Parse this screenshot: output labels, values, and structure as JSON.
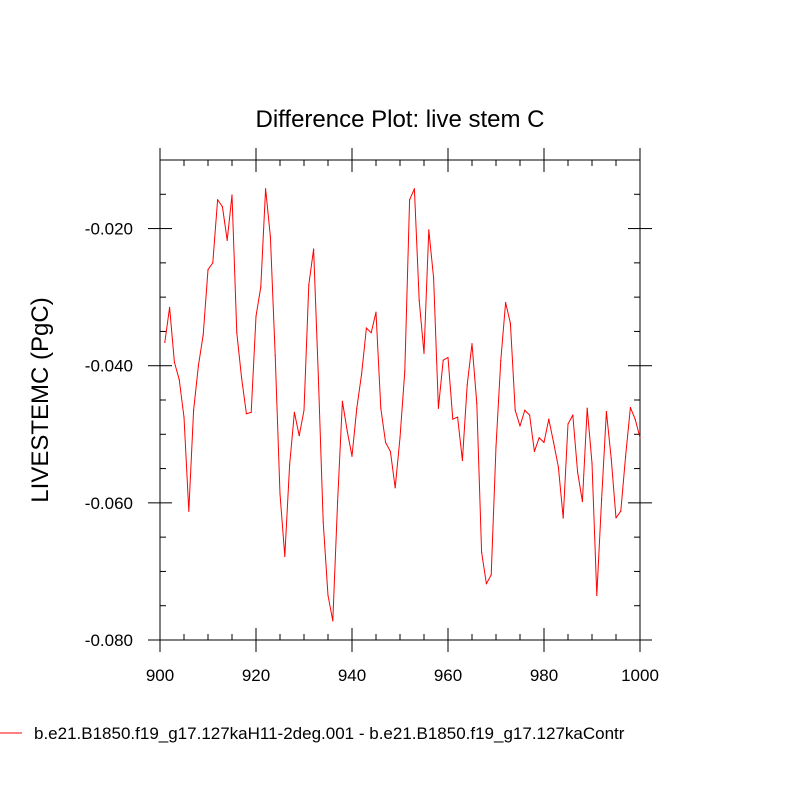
{
  "chart_data": {
    "type": "line",
    "title": "Difference Plot: live stem C",
    "xlabel": "",
    "ylabel": "LIVESTEMC  (PgC)",
    "xlim": [
      900,
      1000
    ],
    "ylim": [
      -0.08,
      -0.01
    ],
    "x_ticks": [
      900,
      920,
      940,
      960,
      980,
      1000
    ],
    "x_tick_labels": [
      "900",
      "920",
      "940",
      "960",
      "980",
      "1000"
    ],
    "y_ticks": [
      -0.08,
      -0.06,
      -0.04,
      -0.02
    ],
    "y_tick_labels": [
      "-0.080",
      "-0.060",
      "-0.040",
      "-0.020"
    ],
    "grid": false,
    "legend_position": "bottom",
    "series": [
      {
        "name": "b.e21.B1850.f19_g17.127kaH11-2deg.001 - b.e21.B1850.f19_g17.127kaContr",
        "color": "#ff0000",
        "x": [
          901,
          902,
          903,
          904,
          905,
          906,
          907,
          908,
          909,
          910,
          911,
          912,
          913,
          914,
          915,
          916,
          917,
          918,
          919,
          920,
          921,
          922,
          923,
          924,
          925,
          926,
          927,
          928,
          929,
          930,
          931,
          932,
          933,
          934,
          935,
          936,
          937,
          938,
          939,
          940,
          941,
          942,
          943,
          944,
          945,
          946,
          947,
          948,
          949,
          950,
          951,
          952,
          953,
          954,
          955,
          956,
          957,
          958,
          959,
          960,
          961,
          962,
          963,
          964,
          965,
          966,
          967,
          968,
          969,
          970,
          971,
          972,
          973,
          974,
          975,
          976,
          977,
          978,
          979,
          980,
          981,
          982,
          983,
          984,
          985,
          986,
          987,
          988,
          989,
          990,
          991,
          992,
          993,
          994,
          995,
          996,
          997,
          998,
          999,
          1000
        ],
        "values": [
          -0.0366,
          -0.0315,
          -0.0395,
          -0.042,
          -0.0475,
          -0.0612,
          -0.0465,
          -0.04,
          -0.0355,
          -0.026,
          -0.025,
          -0.0158,
          -0.0168,
          -0.0217,
          -0.0151,
          -0.0352,
          -0.0418,
          -0.047,
          -0.0468,
          -0.0328,
          -0.0285,
          -0.0142,
          -0.0212,
          -0.0385,
          -0.0587,
          -0.0678,
          -0.0545,
          -0.0468,
          -0.0502,
          -0.0465,
          -0.0282,
          -0.023,
          -0.0418,
          -0.0628,
          -0.0735,
          -0.0772,
          -0.0598,
          -0.0452,
          -0.0495,
          -0.0532,
          -0.0462,
          -0.0412,
          -0.0345,
          -0.0352,
          -0.0322,
          -0.0462,
          -0.0512,
          -0.0525,
          -0.0578,
          -0.0505,
          -0.0408,
          -0.0158,
          -0.0142,
          -0.0305,
          -0.0382,
          -0.0202,
          -0.0272,
          -0.0462,
          -0.0392,
          -0.0388,
          -0.0478,
          -0.0475,
          -0.0538,
          -0.0428,
          -0.0368,
          -0.0455,
          -0.0672,
          -0.0718,
          -0.0705,
          -0.0518,
          -0.0392,
          -0.0308,
          -0.0338,
          -0.0465,
          -0.0488,
          -0.0465,
          -0.0472,
          -0.0525,
          -0.0505,
          -0.0512,
          -0.0478,
          -0.0512,
          -0.0548,
          -0.0622,
          -0.0485,
          -0.0472,
          -0.0555,
          -0.0598,
          -0.0462,
          -0.0542,
          -0.0735,
          -0.0595,
          -0.0467,
          -0.0535,
          -0.0622,
          -0.0612,
          -0.0532,
          -0.0461,
          -0.0478,
          -0.0505
        ]
      }
    ]
  }
}
